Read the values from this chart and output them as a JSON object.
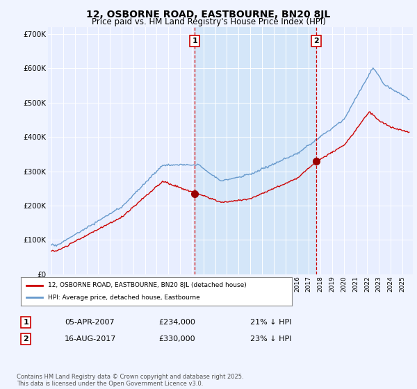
{
  "title": "12, OSBORNE ROAD, EASTBOURNE, BN20 8JL",
  "subtitle": "Price paid vs. HM Land Registry's House Price Index (HPI)",
  "title_fontsize": 10,
  "subtitle_fontsize": 8.5,
  "background_color": "#f0f4ff",
  "plot_bg_color": "#e8eeff",
  "shade_color": "#d0e4f8",
  "line1_color": "#cc0000",
  "line2_color": "#6699cc",
  "marker_color": "#990000",
  "vline_color": "#cc0000",
  "ylim": [
    0,
    720000
  ],
  "yticks": [
    0,
    100000,
    200000,
    300000,
    400000,
    500000,
    600000,
    700000
  ],
  "ytick_labels": [
    "£0",
    "£100K",
    "£200K",
    "£300K",
    "£400K",
    "£500K",
    "£600K",
    "£700K"
  ],
  "legend1_label": "12, OSBORNE ROAD, EASTBOURNE, BN20 8JL (detached house)",
  "legend2_label": "HPI: Average price, detached house, Eastbourne",
  "transaction1_date": "05-APR-2007",
  "transaction1_price": 234000,
  "transaction1_hpi": "21% ↓ HPI",
  "transaction1_year": 2007.25,
  "transaction2_date": "16-AUG-2017",
  "transaction2_price": 330000,
  "transaction2_hpi": "23% ↓ HPI",
  "transaction2_year": 2017.62,
  "footnote": "Contains HM Land Registry data © Crown copyright and database right 2025.\nThis data is licensed under the Open Government Licence v3.0.",
  "footnote_fontsize": 6.0,
  "xlim_left": 1994.7,
  "xlim_right": 2025.9
}
